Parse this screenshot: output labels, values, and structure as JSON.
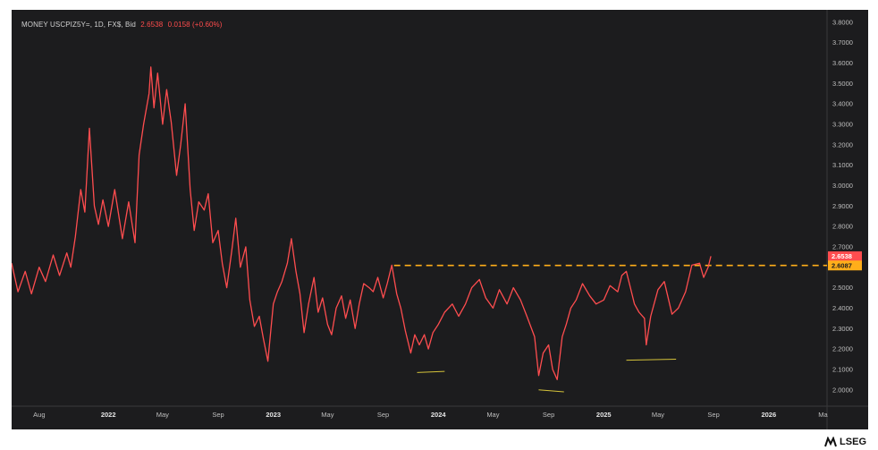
{
  "legend": {
    "symbol": "MONEY USCPIZ5Y=, 1D, FX$, Bid",
    "last": "2.6538",
    "change": "0.0158 (+0.60%)"
  },
  "brand": {
    "name": "LSEG"
  },
  "colors": {
    "background": "#1c1c1e",
    "series": "#ff4d4f",
    "resistance": "#ffae1a",
    "support": "#d4c23a",
    "last_badge": "#ff4d4f",
    "level_badge": "#ffae1a"
  },
  "chart_data": {
    "type": "line",
    "title": "",
    "xlabel": "",
    "ylabel": "",
    "ylim": [
      1.92,
      3.86
    ],
    "y_ticks": [
      "3.8000",
      "3.7000",
      "3.6000",
      "3.5000",
      "3.4000",
      "3.3000",
      "3.2000",
      "3.1000",
      "3.0000",
      "2.9000",
      "2.8000",
      "2.7000",
      "2.6000",
      "2.5000",
      "2.4000",
      "2.3000",
      "2.2000",
      "2.1000",
      "2.0000"
    ],
    "x_ticks": [
      {
        "label": "Aug",
        "date": "2021-08-01",
        "bold": false
      },
      {
        "label": "2022",
        "date": "2022-01-01",
        "bold": true
      },
      {
        "label": "May",
        "date": "2022-05-01",
        "bold": false
      },
      {
        "label": "Sep",
        "date": "2022-09-01",
        "bold": false
      },
      {
        "label": "2023",
        "date": "2023-01-01",
        "bold": true
      },
      {
        "label": "May",
        "date": "2023-05-01",
        "bold": false
      },
      {
        "label": "Sep",
        "date": "2023-09-01",
        "bold": false
      },
      {
        "label": "2024",
        "date": "2024-01-01",
        "bold": true
      },
      {
        "label": "May",
        "date": "2024-05-01",
        "bold": false
      },
      {
        "label": "Sep",
        "date": "2024-09-01",
        "bold": false
      },
      {
        "label": "2025",
        "date": "2025-01-01",
        "bold": true
      },
      {
        "label": "May",
        "date": "2025-05-01",
        "bold": false
      },
      {
        "label": "Sep",
        "date": "2025-09-01",
        "bold": false
      },
      {
        "label": "2026",
        "date": "2026-01-01",
        "bold": true
      },
      {
        "label": "Ma",
        "date": "2026-05-01",
        "bold": false
      }
    ],
    "series": [
      {
        "values": [
          [
            "2021-06-01",
            2.62
          ],
          [
            "2021-06-15",
            2.48
          ],
          [
            "2021-07-01",
            2.58
          ],
          [
            "2021-07-15",
            2.47
          ],
          [
            "2021-08-01",
            2.6
          ],
          [
            "2021-08-15",
            2.53
          ],
          [
            "2021-09-01",
            2.66
          ],
          [
            "2021-09-15",
            2.56
          ],
          [
            "2021-10-01",
            2.67
          ],
          [
            "2021-10-10",
            2.6
          ],
          [
            "2021-10-20",
            2.75
          ],
          [
            "2021-11-01",
            2.98
          ],
          [
            "2021-11-10",
            2.87
          ],
          [
            "2021-11-20",
            3.28
          ],
          [
            "2021-12-01",
            2.9
          ],
          [
            "2021-12-10",
            2.81
          ],
          [
            "2021-12-20",
            2.93
          ],
          [
            "2022-01-01",
            2.8
          ],
          [
            "2022-01-15",
            2.98
          ],
          [
            "2022-02-01",
            2.74
          ],
          [
            "2022-02-15",
            2.92
          ],
          [
            "2022-03-01",
            2.72
          ],
          [
            "2022-03-10",
            3.15
          ],
          [
            "2022-03-20",
            3.3
          ],
          [
            "2022-04-01",
            3.45
          ],
          [
            "2022-04-05",
            3.58
          ],
          [
            "2022-04-12",
            3.38
          ],
          [
            "2022-04-20",
            3.55
          ],
          [
            "2022-05-01",
            3.3
          ],
          [
            "2022-05-10",
            3.47
          ],
          [
            "2022-05-20",
            3.31
          ],
          [
            "2022-06-01",
            3.05
          ],
          [
            "2022-06-10",
            3.2
          ],
          [
            "2022-06-20",
            3.4
          ],
          [
            "2022-07-01",
            2.98
          ],
          [
            "2022-07-10",
            2.78
          ],
          [
            "2022-07-20",
            2.92
          ],
          [
            "2022-08-01",
            2.88
          ],
          [
            "2022-08-10",
            2.96
          ],
          [
            "2022-08-20",
            2.72
          ],
          [
            "2022-09-01",
            2.78
          ],
          [
            "2022-09-10",
            2.62
          ],
          [
            "2022-09-20",
            2.5
          ],
          [
            "2022-10-01",
            2.68
          ],
          [
            "2022-10-10",
            2.84
          ],
          [
            "2022-10-20",
            2.6
          ],
          [
            "2022-11-01",
            2.7
          ],
          [
            "2022-11-10",
            2.44
          ],
          [
            "2022-11-20",
            2.31
          ],
          [
            "2022-12-01",
            2.36
          ],
          [
            "2022-12-10",
            2.25
          ],
          [
            "2022-12-20",
            2.14
          ],
          [
            "2023-01-01",
            2.42
          ],
          [
            "2023-01-10",
            2.48
          ],
          [
            "2023-01-20",
            2.53
          ],
          [
            "2023-02-01",
            2.62
          ],
          [
            "2023-02-10",
            2.74
          ],
          [
            "2023-02-20",
            2.58
          ],
          [
            "2023-03-01",
            2.47
          ],
          [
            "2023-03-10",
            2.28
          ],
          [
            "2023-03-20",
            2.42
          ],
          [
            "2023-04-01",
            2.55
          ],
          [
            "2023-04-10",
            2.38
          ],
          [
            "2023-04-20",
            2.45
          ],
          [
            "2023-05-01",
            2.32
          ],
          [
            "2023-05-10",
            2.27
          ],
          [
            "2023-05-20",
            2.4
          ],
          [
            "2023-06-01",
            2.46
          ],
          [
            "2023-06-10",
            2.35
          ],
          [
            "2023-06-20",
            2.44
          ],
          [
            "2023-07-01",
            2.3
          ],
          [
            "2023-07-10",
            2.42
          ],
          [
            "2023-07-20",
            2.52
          ],
          [
            "2023-08-01",
            2.5
          ],
          [
            "2023-08-10",
            2.48
          ],
          [
            "2023-08-20",
            2.55
          ],
          [
            "2023-09-01",
            2.45
          ],
          [
            "2023-09-10",
            2.52
          ],
          [
            "2023-09-20",
            2.61
          ],
          [
            "2023-10-01",
            2.47
          ],
          [
            "2023-10-10",
            2.4
          ],
          [
            "2023-10-20",
            2.29
          ],
          [
            "2023-11-01",
            2.18
          ],
          [
            "2023-11-10",
            2.27
          ],
          [
            "2023-11-20",
            2.22
          ],
          [
            "2023-12-01",
            2.27
          ],
          [
            "2023-12-10",
            2.2
          ],
          [
            "2023-12-20",
            2.28
          ],
          [
            "2024-01-01",
            2.32
          ],
          [
            "2024-01-15",
            2.38
          ],
          [
            "2024-02-01",
            2.42
          ],
          [
            "2024-02-15",
            2.36
          ],
          [
            "2024-03-01",
            2.42
          ],
          [
            "2024-03-15",
            2.5
          ],
          [
            "2024-04-01",
            2.54
          ],
          [
            "2024-04-15",
            2.45
          ],
          [
            "2024-05-01",
            2.4
          ],
          [
            "2024-05-15",
            2.49
          ],
          [
            "2024-06-01",
            2.42
          ],
          [
            "2024-06-15",
            2.5
          ],
          [
            "2024-07-01",
            2.44
          ],
          [
            "2024-07-15",
            2.36
          ],
          [
            "2024-08-01",
            2.26
          ],
          [
            "2024-08-10",
            2.07
          ],
          [
            "2024-08-20",
            2.18
          ],
          [
            "2024-09-01",
            2.22
          ],
          [
            "2024-09-10",
            2.1
          ],
          [
            "2024-09-20",
            2.05
          ],
          [
            "2024-10-01",
            2.26
          ],
          [
            "2024-10-10",
            2.32
          ],
          [
            "2024-10-20",
            2.4
          ],
          [
            "2024-11-01",
            2.44
          ],
          [
            "2024-11-15",
            2.52
          ],
          [
            "2024-12-01",
            2.46
          ],
          [
            "2024-12-15",
            2.42
          ],
          [
            "2025-01-01",
            2.44
          ],
          [
            "2025-01-15",
            2.51
          ],
          [
            "2025-02-01",
            2.48
          ],
          [
            "2025-02-10",
            2.56
          ],
          [
            "2025-02-20",
            2.58
          ],
          [
            "2025-03-01",
            2.5
          ],
          [
            "2025-03-10",
            2.42
          ],
          [
            "2025-03-20",
            2.38
          ],
          [
            "2025-04-01",
            2.35
          ],
          [
            "2025-04-05",
            2.22
          ],
          [
            "2025-04-15",
            2.36
          ],
          [
            "2025-05-01",
            2.49
          ],
          [
            "2025-05-15",
            2.53
          ],
          [
            "2025-06-01",
            2.37
          ],
          [
            "2025-06-15",
            2.4
          ],
          [
            "2025-07-01",
            2.48
          ],
          [
            "2025-07-15",
            2.61
          ],
          [
            "2025-08-01",
            2.62
          ],
          [
            "2025-08-10",
            2.55
          ],
          [
            "2025-08-20",
            2.6
          ],
          [
            "2025-08-26",
            2.6538
          ]
        ]
      }
    ],
    "annotations": {
      "resistance": {
        "from": "2023-09-25",
        "value": 2.6087
      },
      "supports": [
        {
          "from": "2023-11-15",
          "to": "2024-01-15",
          "y_from": 2.085,
          "y_to": 2.09
        },
        {
          "from": "2024-08-10",
          "to": "2024-10-05",
          "y_from": 2.0,
          "y_to": 1.99
        },
        {
          "from": "2025-02-20",
          "to": "2025-06-10",
          "y_from": 2.145,
          "y_to": 2.15
        }
      ]
    },
    "last_badge": "2.6538",
    "level_badge": "2.6087"
  }
}
